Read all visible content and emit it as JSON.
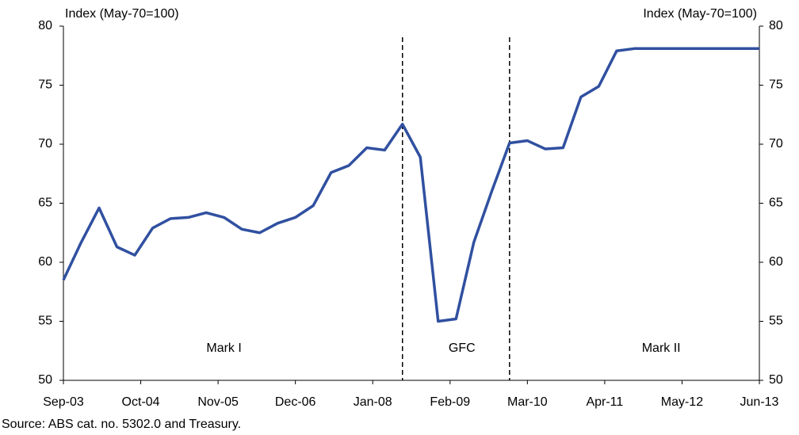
{
  "chart_data": {
    "type": "line",
    "y_label": "Index (May-70=100)",
    "y2_label": "Index (May-70=100)",
    "source": "Source: ABS cat. no. 5302.0 and Treasury.",
    "x": [
      0,
      3,
      6,
      9,
      12,
      15,
      18,
      21,
      24,
      27,
      30,
      33,
      36,
      39,
      42,
      45,
      48,
      51,
      54,
      57,
      60,
      63,
      66,
      69,
      72,
      75,
      78,
      81,
      84,
      87,
      90,
      93,
      96,
      99,
      102,
      105,
      108,
      111,
      114,
      117
    ],
    "values": [
      58.5,
      61.7,
      64.6,
      61.3,
      60.6,
      62.9,
      63.7,
      63.8,
      64.2,
      63.8,
      62.8,
      62.5,
      63.3,
      63.8,
      64.8,
      67.6,
      68.2,
      69.7,
      69.5,
      71.7,
      68.9,
      55.0,
      55.2,
      61.7,
      66.0,
      70.1,
      70.3,
      69.6,
      69.7,
      74.0,
      74.9,
      77.9,
      78.1,
      78.1,
      78.1,
      78.1,
      78.1,
      78.1,
      78.1,
      78.1
    ],
    "color": "#3050a0",
    "xlim": [
      0,
      117
    ],
    "xticks": [
      {
        "value": 0,
        "label": "Sep-03"
      },
      {
        "value": 13,
        "label": "Oct-04"
      },
      {
        "value": 26,
        "label": "Nov-05"
      },
      {
        "value": 39,
        "label": "Dec-06"
      },
      {
        "value": 52,
        "label": "Jan-08"
      },
      {
        "value": 65,
        "label": "Feb-09"
      },
      {
        "value": 78,
        "label": "Mar-10"
      },
      {
        "value": 91,
        "label": "Apr-11"
      },
      {
        "value": 104,
        "label": "May-12"
      },
      {
        "value": 117,
        "label": "Jun-13"
      }
    ],
    "ylim": [
      50,
      80
    ],
    "yticks": [
      50,
      55,
      60,
      65,
      70,
      75,
      80
    ],
    "y2lim": [
      50,
      80
    ],
    "y2ticks": [
      50,
      55,
      60,
      65,
      70,
      75,
      80
    ],
    "vlines": [
      57,
      75
    ],
    "annotations": [
      {
        "text": "Mark I",
        "x": 27,
        "y": 52.7
      },
      {
        "text": "GFC",
        "x": 67,
        "y": 52.7
      },
      {
        "text": "Mark II",
        "x": 100.5,
        "y": 52.7
      }
    ],
    "grid": false
  }
}
